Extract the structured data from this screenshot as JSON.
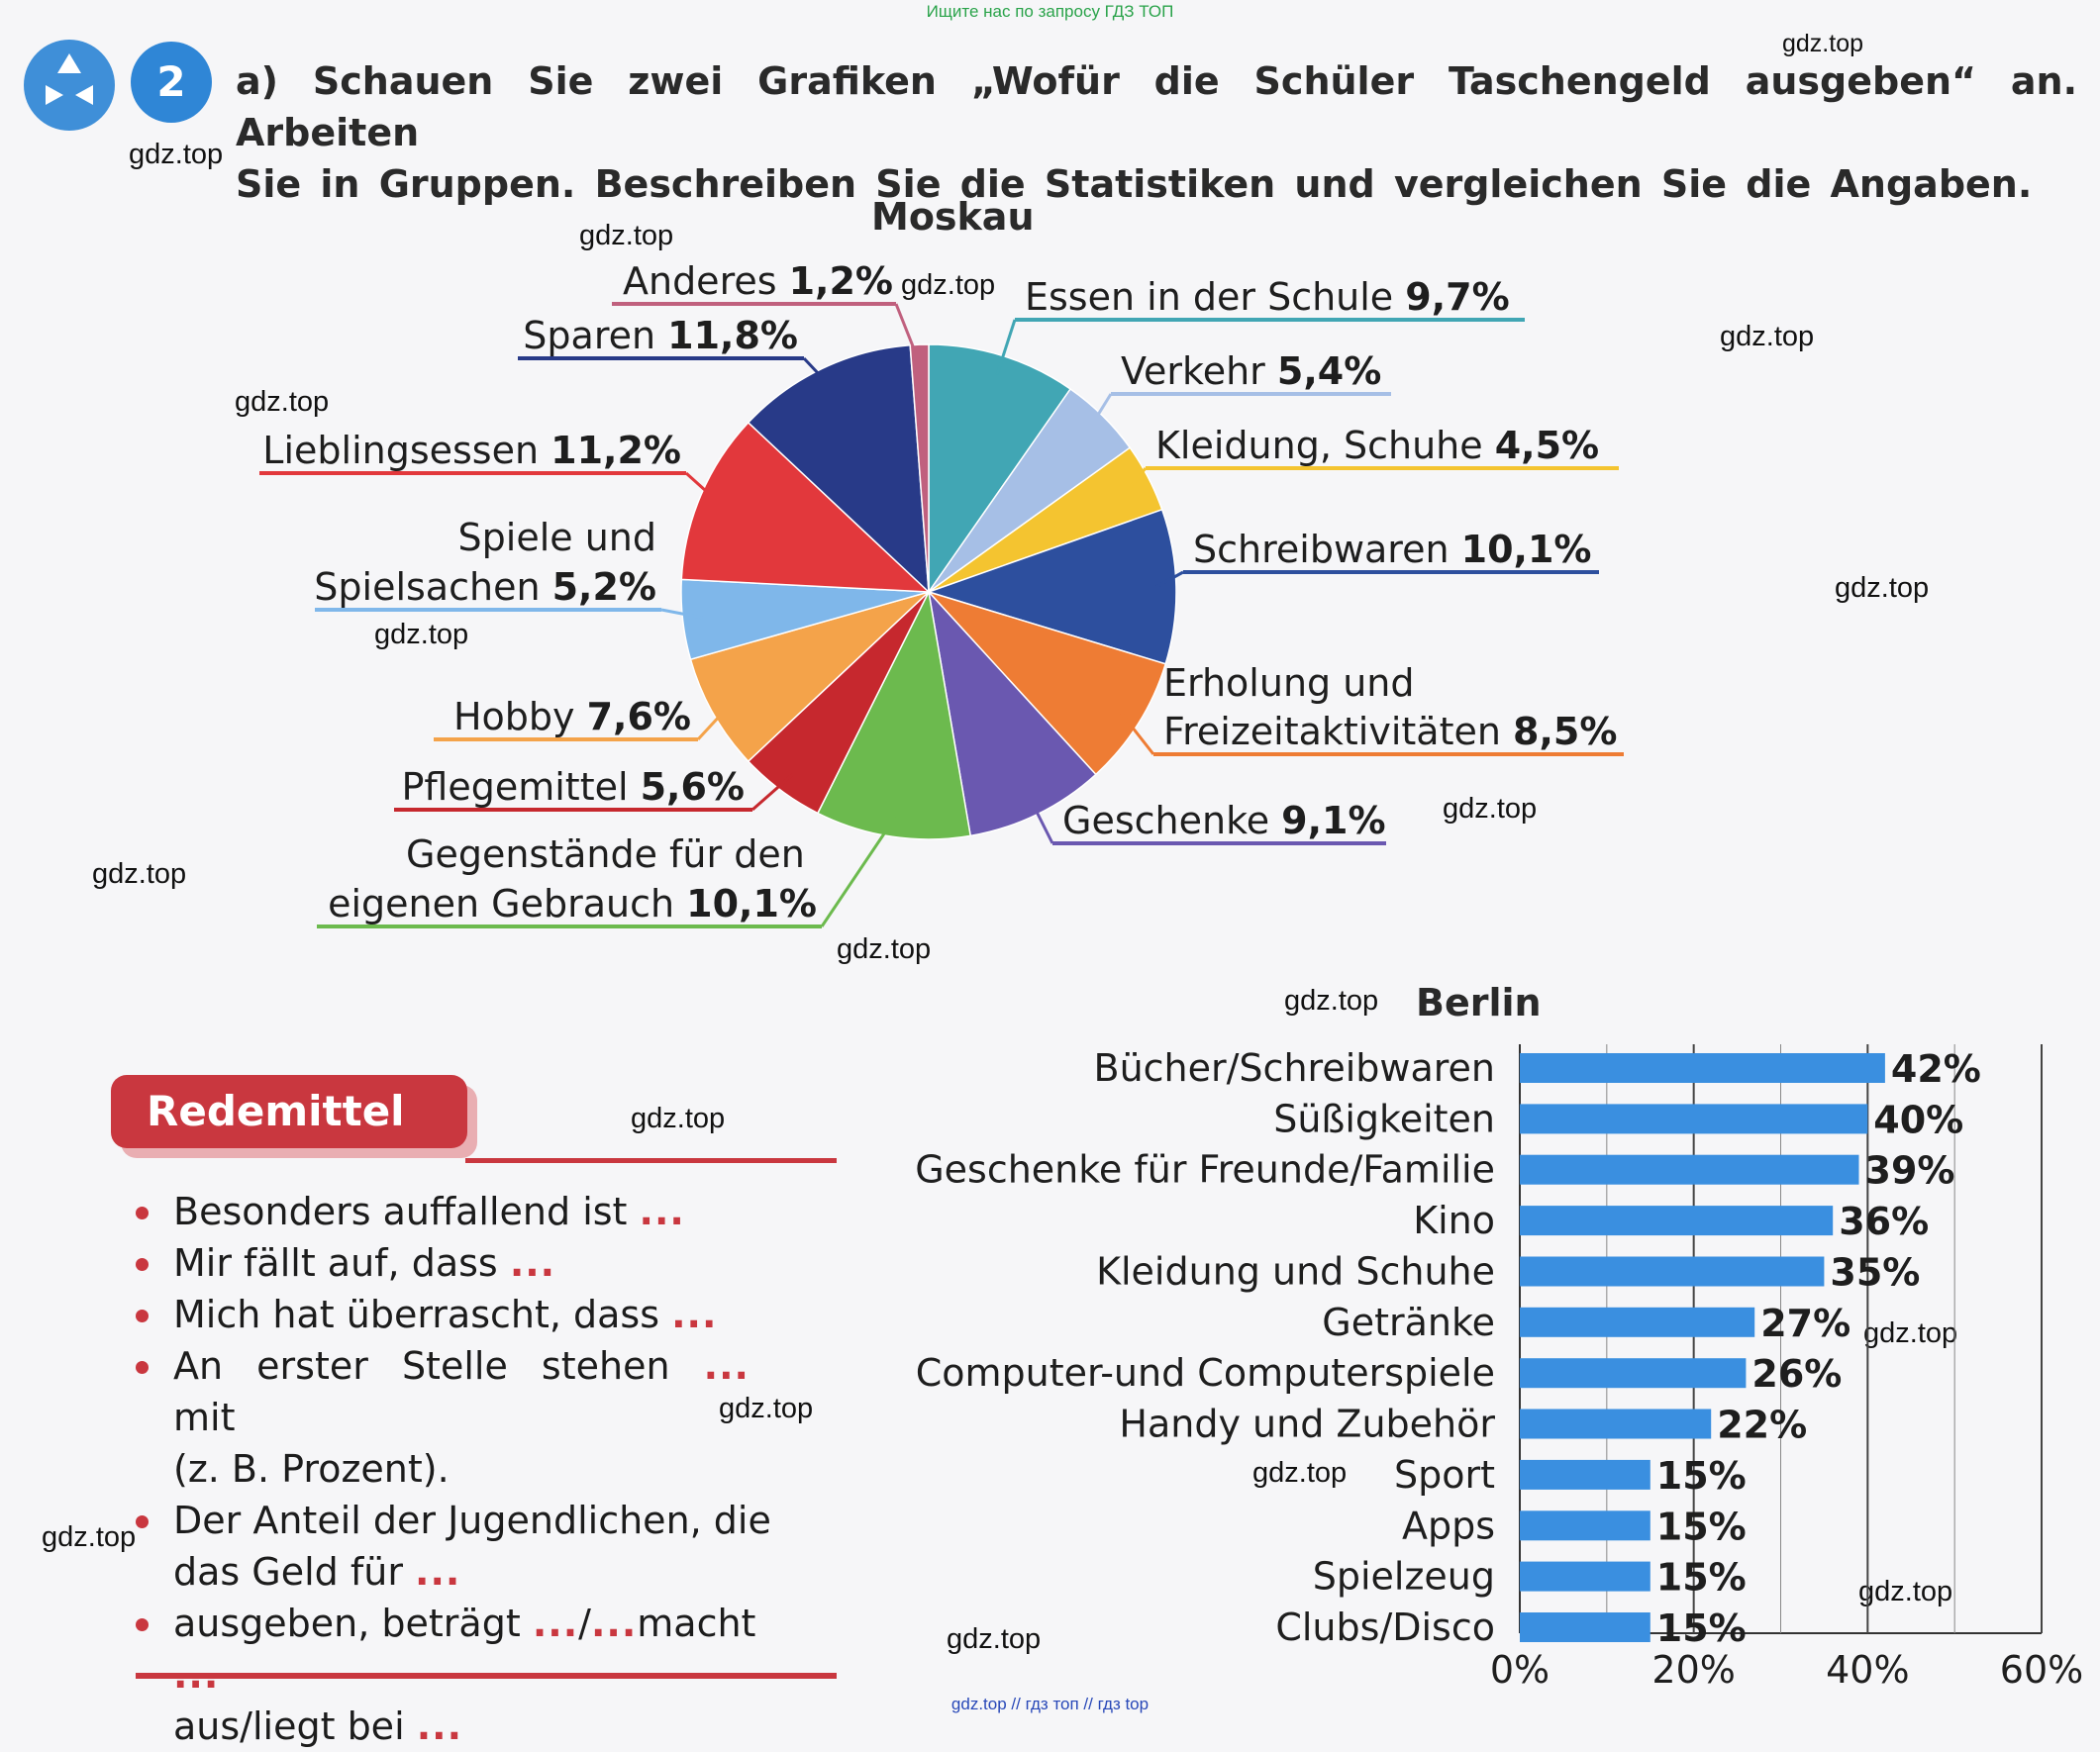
{
  "banner_top": "Ищите нас по запросу ГДЗ ТОП",
  "banner_bottom": "gdz.top // гдз топ // гдз top",
  "watermark": "gdz.top",
  "exercise": {
    "number": "2",
    "line1": "a) Schauen Sie zwei Grafiken „Wofür die Schüler Taschengeld ausgeben“ an. Arbeiten",
    "line2": "Sie in Gruppen. Beschreiben Sie die Statistiken und vergleichen Sie die Angaben."
  },
  "chart_data": [
    {
      "type": "pie",
      "title": "Moskau",
      "slices": [
        {
          "label": "Essen in der Schule",
          "value": 9.7,
          "value_label": "9,7%",
          "color": "#41a6b4"
        },
        {
          "label": "Verkehr",
          "value": 5.4,
          "value_label": "5,4%",
          "color": "#a6bfe6"
        },
        {
          "label": "Kleidung, Schuhe",
          "value": 4.5,
          "value_label": "4,5%",
          "color": "#f4c430"
        },
        {
          "label": "Schreibwaren",
          "value": 10.1,
          "value_label": "10,1%",
          "color": "#2d4f9e"
        },
        {
          "label": "Erholung und Freizeitaktivitäten",
          "value": 8.5,
          "value_label": "8,5%",
          "color": "#ee7c34"
        },
        {
          "label": "Geschenke",
          "value": 9.1,
          "value_label": "9,1%",
          "color": "#6a58b0"
        },
        {
          "label": "Gegenstände für den eigenen Gebrauch",
          "value": 10.1,
          "value_label": "10,1%",
          "color": "#6cba4e"
        },
        {
          "label": "Pflegemittel",
          "value": 5.6,
          "value_label": "5,6%",
          "color": "#c6282e"
        },
        {
          "label": "Hobby",
          "value": 7.6,
          "value_label": "7,6%",
          "color": "#f4a34a"
        },
        {
          "label": "Spiele und Spielsachen",
          "value": 5.2,
          "value_label": "5,2%",
          "color": "#7fb7ea"
        },
        {
          "label": "Lieblingsessen",
          "value": 11.2,
          "value_label": "11,2%",
          "color": "#e2383c"
        },
        {
          "label": "Sparen",
          "value": 11.8,
          "value_label": "11,8%",
          "color": "#283a88"
        },
        {
          "label": "Anderes",
          "value": 1.2,
          "value_label": "1,2%",
          "color": "#c0607e"
        }
      ]
    },
    {
      "type": "bar",
      "orientation": "horizontal",
      "title": "Berlin",
      "categories": [
        "Bücher/Schreibwaren",
        "Süßigkeiten",
        "Geschenke für Freunde/Familie",
        "Kino",
        "Kleidung und Schuhe",
        "Getränke",
        "Computer-und Computerspiele",
        "Handy und Zubehör",
        "Sport",
        "Apps",
        "Spielzeug",
        "Clubs/Disco"
      ],
      "values": [
        42,
        40,
        39,
        36,
        35,
        27,
        26,
        22,
        15,
        15,
        15,
        15
      ],
      "value_labels": [
        "42%",
        "40%",
        "39%",
        "36%",
        "35%",
        "27%",
        "26%",
        "22%",
        "15%",
        "15%",
        "15%",
        "15%"
      ],
      "xlim": [
        0,
        60
      ],
      "xticks": [
        "0%",
        "20%",
        "40%",
        "60%"
      ],
      "grid": true,
      "bar_color": "#3a8fe0"
    }
  ],
  "redemittel": {
    "title": "Redemittel",
    "items": [
      {
        "text": "Besonders auffallend ist",
        "dots": "..."
      },
      {
        "text": "Mir fällt auf, dass",
        "dots": "..."
      },
      {
        "text": "Mich hat überrascht, dass",
        "dots": "..."
      },
      {
        "text": "An erster Stelle stehen",
        "dots": "...",
        "after": "mit",
        "cont": "(z. B. Prozent)."
      },
      {
        "text": "Der Anteil der Jugendlichen, die",
        "cont": "das Geld für",
        "cont_dots": "..."
      },
      {
        "text": "ausgeben, beträgt",
        "dots": "...",
        "sep": "/",
        "dots2": "...",
        "after": "macht",
        "dots3": "...",
        "cont": "aus/liegt bei",
        "cont_dots": "..."
      }
    ]
  }
}
